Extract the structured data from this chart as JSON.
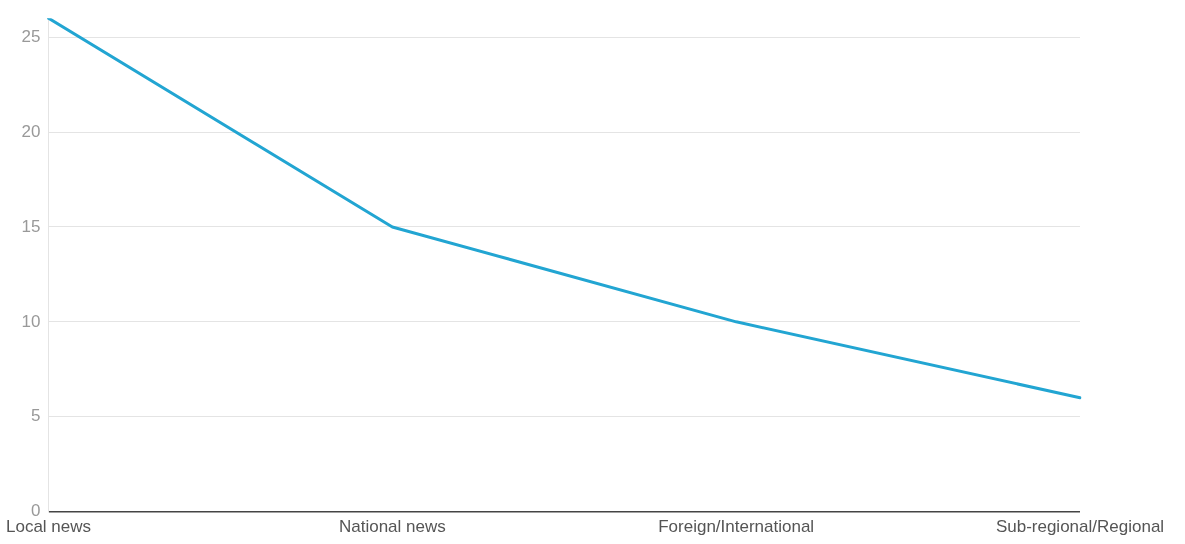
{
  "chart_data": {
    "type": "line",
    "categories": [
      "Local news",
      "National news",
      "Foreign/International",
      "Sub-regional/Regional"
    ],
    "series": [
      {
        "color": "#22a5d2",
        "values": [
          26,
          15,
          10,
          6
        ]
      }
    ],
    "ylim": [
      0,
      26
    ],
    "yticks": [
      0,
      5,
      10,
      15,
      20,
      25
    ],
    "grid": "y",
    "legend": false,
    "marker": "none",
    "line_style": "solid"
  }
}
